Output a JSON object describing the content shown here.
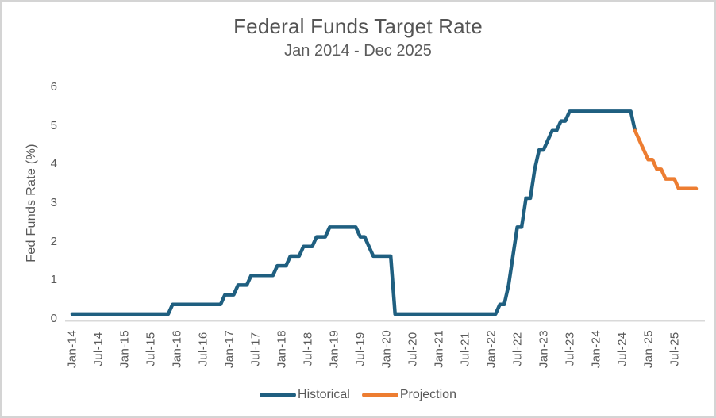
{
  "chart_data": {
    "type": "line",
    "title": "Federal Funds Target Rate",
    "subtitle": "Jan 2014 - Dec 2025",
    "ylabel": "Fed Funds Rate (%)",
    "ylim": [
      0,
      6
    ],
    "yticks": [
      "0",
      "1",
      "2",
      "3",
      "4",
      "5",
      "6"
    ],
    "x_frequency": "monthly",
    "x_start": "Jan-14",
    "x_end": "Dec-25",
    "xticklabels": [
      "Jan-14",
      "Jul-14",
      "Jan-15",
      "Jul-15",
      "Jan-16",
      "Jul-16",
      "Jan-17",
      "Jul-17",
      "Jan-18",
      "Jul-18",
      "Jan-19",
      "Jul-19",
      "Jan-20",
      "Jul-20",
      "Jan-21",
      "Jul-21",
      "Jan-22",
      "Jul-22",
      "Jan-23",
      "Jul-23",
      "Jan-24",
      "Jul-24",
      "Jan-25",
      "Jul-25"
    ],
    "grid": false,
    "legend_position": "bottom",
    "axis_color": "#D9D9D9",
    "legend": [
      {
        "name": "Historical",
        "color": "#1F5F80"
      },
      {
        "name": "Projection",
        "color": "#ED7D31"
      }
    ],
    "series": [
      {
        "name": "Historical",
        "color": "#1F5F80",
        "start_month_index": 0,
        "values": [
          0.125,
          0.125,
          0.125,
          0.125,
          0.125,
          0.125,
          0.125,
          0.125,
          0.125,
          0.125,
          0.125,
          0.125,
          0.125,
          0.125,
          0.125,
          0.125,
          0.125,
          0.125,
          0.125,
          0.125,
          0.125,
          0.125,
          0.125,
          0.375,
          0.375,
          0.375,
          0.375,
          0.375,
          0.375,
          0.375,
          0.375,
          0.375,
          0.375,
          0.375,
          0.375,
          0.625,
          0.625,
          0.625,
          0.875,
          0.875,
          0.875,
          1.125,
          1.125,
          1.125,
          1.125,
          1.125,
          1.125,
          1.375,
          1.375,
          1.375,
          1.625,
          1.625,
          1.625,
          1.875,
          1.875,
          1.875,
          2.125,
          2.125,
          2.125,
          2.375,
          2.375,
          2.375,
          2.375,
          2.375,
          2.375,
          2.375,
          2.125,
          2.125,
          1.875,
          1.625,
          1.625,
          1.625,
          1.625,
          1.625,
          0.125,
          0.125,
          0.125,
          0.125,
          0.125,
          0.125,
          0.125,
          0.125,
          0.125,
          0.125,
          0.125,
          0.125,
          0.125,
          0.125,
          0.125,
          0.125,
          0.125,
          0.125,
          0.125,
          0.125,
          0.125,
          0.125,
          0.125,
          0.125,
          0.375,
          0.375,
          0.875,
          1.625,
          2.375,
          2.375,
          3.125,
          3.125,
          3.875,
          4.375,
          4.375,
          4.625,
          4.875,
          4.875,
          5.125,
          5.125,
          5.375,
          5.375,
          5.375,
          5.375,
          5.375,
          5.375,
          5.375,
          5.375,
          5.375,
          5.375,
          5.375,
          5.375,
          5.375,
          5.375,
          5.375,
          4.875
        ]
      },
      {
        "name": "Projection",
        "color": "#ED7D31",
        "start_month_index": 129,
        "values": [
          4.875,
          4.625,
          4.375,
          4.125,
          4.125,
          3.875,
          3.875,
          3.625,
          3.625,
          3.625,
          3.375,
          3.375,
          3.375,
          3.375,
          3.375
        ]
      }
    ]
  }
}
